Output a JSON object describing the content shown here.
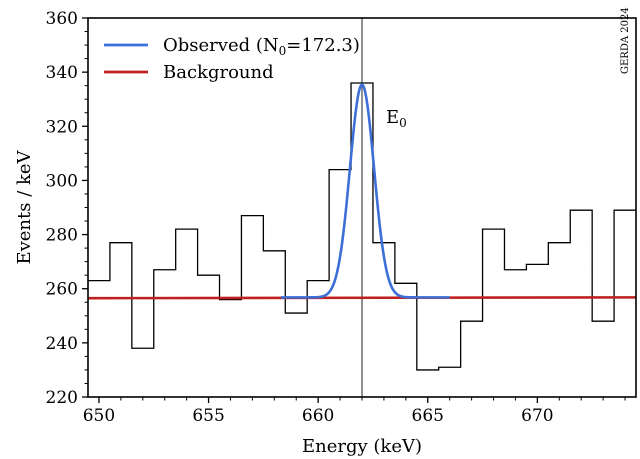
{
  "chart_data": {
    "type": "line",
    "title": "",
    "xlabel": "Energy (keV)",
    "ylabel": "Events / keV",
    "xlim": [
      649.5,
      674.5
    ],
    "ylim": [
      220,
      360
    ],
    "grid": false,
    "legend_position": "top-left",
    "x_ticks": [
      "650",
      "655",
      "660",
      "665",
      "670"
    ],
    "y_ticks": [
      "220",
      "240",
      "260",
      "280",
      "300",
      "320",
      "340",
      "360"
    ],
    "histogram": {
      "name": "",
      "color": "#000000",
      "bin_edges": [
        649.5,
        650.5,
        651.5,
        652.5,
        653.5,
        654.5,
        655.5,
        656.5,
        657.5,
        658.5,
        659.5,
        660.5,
        661.5,
        662.5,
        663.5,
        664.5,
        665.5,
        666.5,
        667.5,
        668.5,
        669.5,
        670.5,
        671.5,
        672.5,
        673.5,
        674.5
      ],
      "counts": [
        263,
        277,
        238,
        267,
        282,
        265,
        256,
        287,
        274,
        251,
        263,
        304,
        336,
        277,
        262,
        230,
        231,
        248,
        282,
        267,
        269,
        277,
        289,
        248,
        289
      ]
    },
    "series": [
      {
        "name": "Observed (N",
        "name_sub": "0",
        "name_suffix": "=172.3)",
        "color": "#3c6fd8",
        "model": "gaussian",
        "center": 662.0,
        "sigma": 0.55,
        "amplitude": 78.6,
        "baseline": 256.8,
        "x_range": [
          658.3,
          666.0
        ]
      },
      {
        "name": "Background",
        "color": "#bf1f1f",
        "x": [
          649.5,
          674.5
        ],
        "values": [
          256.5,
          256.8
        ]
      }
    ],
    "annotations": [
      {
        "text": "E",
        "sub": "0",
        "x": 662.0
      }
    ],
    "watermark": "GERDA 2024"
  }
}
